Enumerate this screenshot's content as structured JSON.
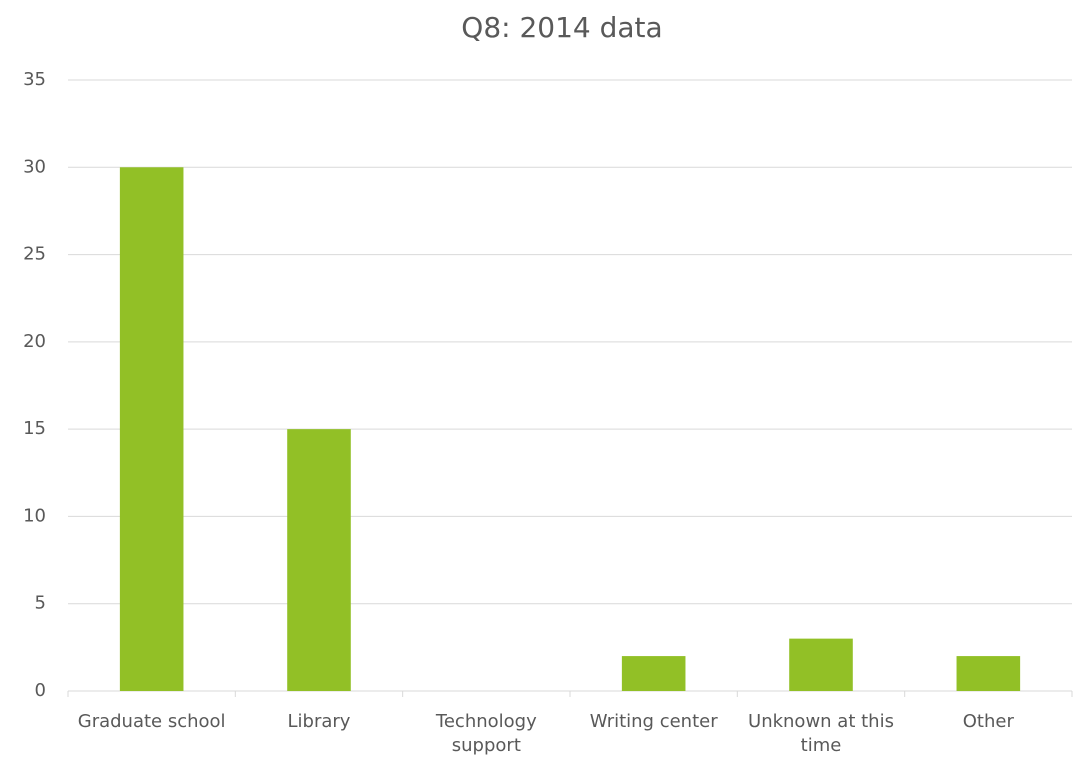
{
  "chart_data": {
    "type": "bar",
    "title": "Q8: 2014 data",
    "categories": [
      "Graduate school",
      "Library",
      "Technology support",
      "Writing center",
      "Unknown at this time",
      "Other"
    ],
    "values": [
      30,
      15,
      0,
      2,
      3,
      2
    ],
    "color": "#92c026",
    "ylim": [
      0,
      35
    ],
    "yticks": [
      0,
      5,
      10,
      15,
      20,
      25,
      30,
      35
    ],
    "grid": true
  }
}
